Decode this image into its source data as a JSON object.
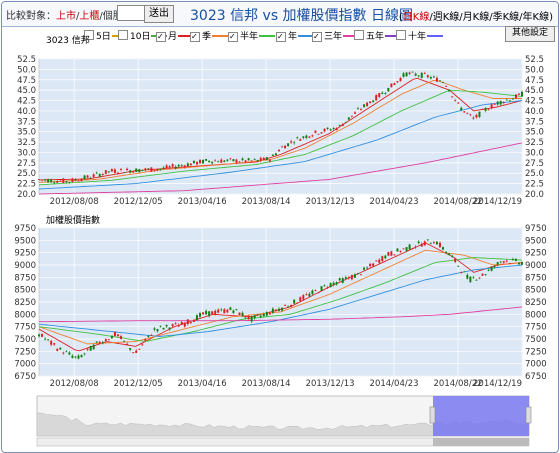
{
  "toolbar": {
    "compare_label": "比較對象：",
    "links": [
      "上市",
      "上櫃",
      "個股"
    ],
    "send_label": "送出",
    "title": "3023 信邦 vs 加權股價指數 日線圖",
    "kline_links": [
      "日K線",
      "週K線",
      "月K線",
      "季K線",
      "年K線"
    ]
  },
  "legend": [
    {
      "label": "5日",
      "checked": false,
      "color": "#d4a000"
    },
    {
      "label": "10日",
      "checked": false,
      "color": "#4aa84a"
    },
    {
      "label": "月",
      "checked": true,
      "color": "#e02020"
    },
    {
      "label": "季",
      "checked": true,
      "color": "#f08030"
    },
    {
      "label": "半年",
      "checked": true,
      "color": "#40c040"
    },
    {
      "label": "年",
      "checked": true,
      "color": "#3090e0"
    },
    {
      "label": "三年",
      "checked": true,
      "color": "#e040a0"
    },
    {
      "label": "五年",
      "checked": false,
      "color": "#8040c0"
    },
    {
      "label": "十年",
      "checked": false,
      "color": "#6060ff"
    }
  ],
  "settings_label": "其他設定",
  "colors": {
    "up": "#e02020",
    "down": "#108010",
    "panel": "#dde8f6",
    "navigator": "#7878f0"
  },
  "chart_data": [
    {
      "type": "candlestick",
      "title": "3023 信邦",
      "x_ticks": [
        "2012/08/08",
        "2012/12/05",
        "2013/04/16",
        "2013/08/14",
        "2013/12/13",
        "2014/04/23",
        "2014/08/22",
        "2014/12/19"
      ],
      "ylim": [
        20,
        52.5
      ],
      "y_ticks": [
        "52.5",
        "50.0",
        "47.5",
        "45.0",
        "42.5",
        "40.0",
        "37.5",
        "35.0",
        "32.5",
        "30.0",
        "27.5",
        "25.0",
        "22.5",
        "20.0"
      ],
      "price_keypoints": [
        [
          0,
          23.5
        ],
        [
          0.06,
          23
        ],
        [
          0.1,
          24
        ],
        [
          0.15,
          25.5
        ],
        [
          0.25,
          26
        ],
        [
          0.35,
          28
        ],
        [
          0.45,
          28
        ],
        [
          0.48,
          28.5
        ],
        [
          0.5,
          31
        ],
        [
          0.53,
          33
        ],
        [
          0.58,
          35
        ],
        [
          0.62,
          36
        ],
        [
          0.66,
          40
        ],
        [
          0.72,
          45
        ],
        [
          0.76,
          49
        ],
        [
          0.8,
          48.5
        ],
        [
          0.84,
          47
        ],
        [
          0.87,
          41
        ],
        [
          0.9,
          38
        ],
        [
          0.92,
          40
        ],
        [
          0.95,
          42
        ],
        [
          0.98,
          43
        ],
        [
          1.0,
          44
        ]
      ],
      "ma": [
        {
          "name": "月",
          "color": "#e02020",
          "keypoints": [
            [
              0,
              23.4
            ],
            [
              0.1,
              23.6
            ],
            [
              0.2,
              25.6
            ],
            [
              0.3,
              26.5
            ],
            [
              0.45,
              27.7
            ],
            [
              0.5,
              29.5
            ],
            [
              0.6,
              34.5
            ],
            [
              0.7,
              42
            ],
            [
              0.78,
              48
            ],
            [
              0.85,
              45
            ],
            [
              0.9,
              40
            ],
            [
              0.95,
              41
            ],
            [
              1.0,
              42.5
            ]
          ]
        },
        {
          "name": "季",
          "color": "#f08030",
          "keypoints": [
            [
              0,
              22.8
            ],
            [
              0.12,
              23.5
            ],
            [
              0.25,
              25.8
            ],
            [
              0.4,
              27.3
            ],
            [
              0.48,
              28.3
            ],
            [
              0.55,
              31
            ],
            [
              0.65,
              37
            ],
            [
              0.75,
              44
            ],
            [
              0.82,
              47.5
            ],
            [
              0.88,
              45
            ],
            [
              0.94,
              43
            ],
            [
              1.0,
              43
            ]
          ]
        },
        {
          "name": "半年",
          "color": "#40c040",
          "keypoints": [
            [
              0,
              22.2
            ],
            [
              0.15,
              23.3
            ],
            [
              0.3,
              25.5
            ],
            [
              0.45,
              27.1
            ],
            [
              0.55,
              29.5
            ],
            [
              0.65,
              34
            ],
            [
              0.75,
              40
            ],
            [
              0.85,
              45
            ],
            [
              0.92,
              44.5
            ],
            [
              1.0,
              43.5
            ]
          ]
        },
        {
          "name": "年",
          "color": "#3090e0",
          "keypoints": [
            [
              0,
              21.2
            ],
            [
              0.2,
              22.5
            ],
            [
              0.4,
              25.3
            ],
            [
              0.55,
              27.8
            ],
            [
              0.7,
              33
            ],
            [
              0.82,
              38.5
            ],
            [
              0.92,
              41.5
            ],
            [
              1.0,
              42.5
            ]
          ]
        },
        {
          "name": "三年",
          "color": "#e040a0",
          "keypoints": [
            [
              0,
              20
            ],
            [
              0.3,
              20.8
            ],
            [
              0.6,
              23.5
            ],
            [
              0.8,
              27.5
            ],
            [
              1.0,
              32.3
            ]
          ]
        }
      ]
    },
    {
      "type": "candlestick",
      "title": "加權股價指數",
      "x_ticks": [
        "2012/08/08",
        "2012/12/05",
        "2013/04/16",
        "2013/08/14",
        "2013/12/13",
        "2014/04/23",
        "2014/08/22",
        "2014/12/19"
      ],
      "ylim": [
        6750,
        9750
      ],
      "y_ticks": [
        "9750",
        "9500",
        "9250",
        "9000",
        "8750",
        "8500",
        "8250",
        "8000",
        "7750",
        "7500",
        "7250",
        "7000",
        "6750"
      ],
      "price_keypoints": [
        [
          0,
          7600
        ],
        [
          0.04,
          7300
        ],
        [
          0.08,
          7100
        ],
        [
          0.12,
          7400
        ],
        [
          0.16,
          7600
        ],
        [
          0.2,
          7200
        ],
        [
          0.24,
          7700
        ],
        [
          0.3,
          7800
        ],
        [
          0.34,
          8000
        ],
        [
          0.4,
          8100
        ],
        [
          0.44,
          7900
        ],
        [
          0.48,
          8050
        ],
        [
          0.52,
          8200
        ],
        [
          0.56,
          8400
        ],
        [
          0.6,
          8600
        ],
        [
          0.66,
          8800
        ],
        [
          0.72,
          9200
        ],
        [
          0.78,
          9400
        ],
        [
          0.82,
          9500
        ],
        [
          0.86,
          9100
        ],
        [
          0.89,
          8700
        ],
        [
          0.92,
          8800
        ],
        [
          0.96,
          9100
        ],
        [
          1.0,
          9050
        ]
      ],
      "ma": [
        {
          "name": "月",
          "color": "#e02020",
          "keypoints": [
            [
              0,
              7700
            ],
            [
              0.08,
              7250
            ],
            [
              0.14,
              7450
            ],
            [
              0.2,
              7350
            ],
            [
              0.28,
              7750
            ],
            [
              0.36,
              8000
            ],
            [
              0.44,
              7950
            ],
            [
              0.52,
              8150
            ],
            [
              0.6,
              8550
            ],
            [
              0.7,
              9000
            ],
            [
              0.8,
              9450
            ],
            [
              0.86,
              9150
            ],
            [
              0.9,
              8850
            ],
            [
              0.95,
              9000
            ],
            [
              1.0,
              9050
            ]
          ]
        },
        {
          "name": "季",
          "color": "#f08030",
          "keypoints": [
            [
              0,
              7750
            ],
            [
              0.1,
              7400
            ],
            [
              0.2,
              7450
            ],
            [
              0.3,
              7700
            ],
            [
              0.4,
              7950
            ],
            [
              0.5,
              8050
            ],
            [
              0.6,
              8400
            ],
            [
              0.7,
              8850
            ],
            [
              0.8,
              9300
            ],
            [
              0.88,
              9200
            ],
            [
              0.94,
              9000
            ],
            [
              1.0,
              9050
            ]
          ]
        },
        {
          "name": "半年",
          "color": "#40c040",
          "keypoints": [
            [
              0,
              7750
            ],
            [
              0.12,
              7600
            ],
            [
              0.22,
              7450
            ],
            [
              0.32,
              7650
            ],
            [
              0.42,
              7900
            ],
            [
              0.52,
              8000
            ],
            [
              0.62,
              8300
            ],
            [
              0.72,
              8650
            ],
            [
              0.82,
              9050
            ],
            [
              0.9,
              9150
            ],
            [
              1.0,
              9100
            ]
          ]
        },
        {
          "name": "年",
          "color": "#3090e0",
          "keypoints": [
            [
              0,
              7800
            ],
            [
              0.15,
              7650
            ],
            [
              0.25,
              7550
            ],
            [
              0.35,
              7650
            ],
            [
              0.48,
              7850
            ],
            [
              0.6,
              8100
            ],
            [
              0.7,
              8400
            ],
            [
              0.8,
              8700
            ],
            [
              0.9,
              8900
            ],
            [
              1.0,
              9000
            ]
          ]
        },
        {
          "name": "三年",
          "color": "#e040a0",
          "keypoints": [
            [
              0,
              7850
            ],
            [
              0.2,
              7870
            ],
            [
              0.4,
              7870
            ],
            [
              0.6,
              7900
            ],
            [
              0.75,
              7950
            ],
            [
              0.85,
              8000
            ],
            [
              1.0,
              8150
            ]
          ]
        }
      ]
    }
  ]
}
